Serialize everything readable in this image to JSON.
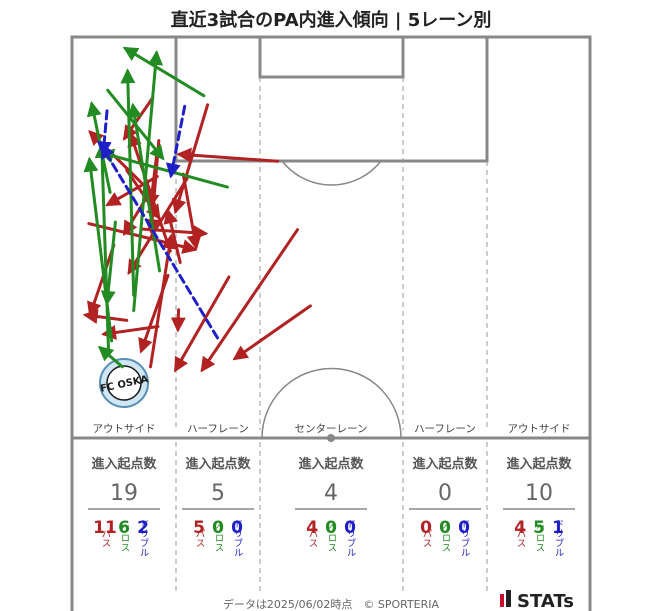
{
  "title": "直近3試合のPA内進入傾向 | 5レーン別",
  "colors": {
    "pass": "#b22222",
    "cross": "#228b22",
    "dribble": "#1f1fc8",
    "line": "#888888",
    "text": "#444444"
  },
  "logo": {
    "alt": "FC Osaka",
    "text": "FC OSKA"
  },
  "footer": {
    "note": "データは2025/06/02時点　© SPORTERIA",
    "brand": "STATs"
  },
  "chart_data": {
    "type": "arrow-map",
    "lanes": [
      {
        "name": "アウトサイド",
        "summary_label": "進入起点数",
        "count": "19",
        "pass": "11",
        "cross": "6",
        "dribble": "2"
      },
      {
        "name": "ハーフレーン",
        "summary_label": "進入起点数",
        "count": "5",
        "pass": "5",
        "cross": "0",
        "dribble": "0"
      },
      {
        "name": "センターレーン",
        "summary_label": "進入起点数",
        "count": "4",
        "pass": "4",
        "cross": "0",
        "dribble": "0"
      },
      {
        "name": "ハーフレーン",
        "summary_label": "進入起点数",
        "count": "0",
        "pass": "0",
        "cross": "0",
        "dribble": "0"
      },
      {
        "name": "アウトサイド",
        "summary_label": "進入起点数",
        "count": "10",
        "pass": "4",
        "cross": "5",
        "dribble": "1"
      }
    ],
    "stat_labels": {
      "pass": "パス",
      "cross": "クロス",
      "dribble": "ドリブル"
    },
    "arrows": [
      {
        "type": "pass",
        "from": [
          31.5,
          20.6
        ],
        "to": [
          43.7,
          13.6
        ]
      },
      {
        "type": "pass",
        "from": [
          25.3,
          29.6
        ],
        "to": [
          43.7,
          17.1
        ]
      },
      {
        "type": "pass",
        "from": [
          8.9,
          17.8
        ],
        "to": [
          22.9,
          13.6
        ]
      },
      {
        "type": "pass",
        "from": [
          18.0,
          14.6
        ],
        "to": [
          27.6,
          16.3
        ]
      },
      {
        "type": "pass",
        "from": [
          14.8,
          11.2
        ],
        "to": [
          22.2,
          10.3
        ]
      },
      {
        "type": "pass",
        "from": [
          17.5,
          7.2
        ],
        "to": [
          23.7,
          11.4
        ]
      },
      {
        "type": "pass",
        "from": [
          13.6,
          11.4
        ],
        "to": [
          25.5,
          10.4
        ]
      },
      {
        "type": "pass",
        "from": [
          27.3,
          5.5
        ],
        "to": [
          36.4,
          2.4
        ]
      },
      {
        "type": "pass",
        "from": [
          37.2,
          7.2
        ],
        "to": [
          36.5,
          1.8
        ]
      },
      {
        "type": "pass",
        "from": [
          35.3,
          31.3
        ],
        "to": [
          42.2,
          21.4
        ]
      },
      {
        "type": "pass",
        "from": [
          20.4,
          10.2
        ],
        "to": [
          25.8,
          6.9
        ]
      },
      {
        "type": "pass",
        "from": [
          25.2,
          9.1
        ],
        "to": [
          25.8,
          17.5
        ]
      },
      {
        "type": "pass",
        "from": [
          18.3,
          11.2
        ],
        "to": [
          22.0,
          4.7
        ]
      },
      {
        "type": "pass",
        "from": [
          28.1,
          12.9
        ],
        "to": [
          12.8,
          7.7
        ]
      },
      {
        "type": "pass",
        "from": [
          16.3,
          27.0
        ],
        "to": [
          15.4,
          14.1
        ]
      },
      {
        "type": "pass",
        "from": [
          18.6,
          15.1
        ],
        "to": [
          30.9,
          7.5
        ]
      },
      {
        "type": "pass",
        "from": [
          31.3,
          12.6
        ],
        "to": [
          41.2,
          9.1
        ]
      },
      {
        "type": "pass",
        "from": [
          38.0,
          11.3
        ],
        "to": [
          39.0,
          4.2
        ]
      },
      {
        "type": "pass",
        "from": [
          8.0,
          10.6
        ],
        "to": [
          13.3,
          6.9
        ]
      },
      {
        "type": "pass",
        "from": [
          29.6,
          14.2
        ],
        "to": [
          22.9,
          12.6
        ]
      },
      {
        "type": "pass",
        "from": [
          35.8,
          14.0
        ],
        "to": [
          38.4,
          13.9
        ]
      },
      {
        "type": "pass",
        "from": [
          43.3,
          10.3
        ],
        "to": [
          26.2,
          13.0
        ]
      },
      {
        "type": "pass",
        "from": [
          24.5,
          2.2
        ],
        "to": [
          27.9,
          16.1
        ]
      },
      {
        "type": "pass",
        "from": [
          21.0,
          11.0
        ],
        "to": [
          12.5,
          2.4
        ]
      },
      {
        "type": "cross",
        "from": [
          19.7,
          20.4
        ],
        "to": [
          15.2,
          3.9
        ]
      },
      {
        "type": "cross",
        "from": [
          7.7,
          17.3
        ],
        "to": [
          1.5,
          7.0
        ]
      },
      {
        "type": "cross",
        "from": [
          24.3,
          5.7
        ],
        "to": [
          34.9,
          4.6
        ]
      },
      {
        "type": "cross",
        "from": [
          20.4,
          5.0
        ],
        "to": [
          8.8,
          2.6
        ]
      },
      {
        "type": "cross",
        "from": [
          41.5,
          4.8
        ],
        "to": [
          14.3,
          3.9
        ]
      },
      {
        "type": "cross",
        "from": [
          43.3,
          6.6
        ],
        "to": [
          40.8,
          3.7
        ]
      },
      {
        "type": "cross",
        "from": [
          39.9,
          5.2
        ],
        "to": [
          16.1,
          2.3
        ]
      },
      {
        "type": "cross",
        "from": [
          30.7,
          11.5
        ],
        "to": [
          9.0,
          8.0
        ]
      },
      {
        "type": "cross",
        "from": [
          7.0,
          4.7
        ],
        "to": [
          15.9,
          11.9
        ]
      },
      {
        "type": "cross",
        "from": [
          35.9,
          8.1
        ],
        "to": [
          2.1,
          11.1
        ]
      },
      {
        "type": "cross",
        "from": [
          33.9,
          8.1
        ],
        "to": [
          4.5,
          7.3
        ]
      },
      {
        "type": "dribble",
        "from": [
          9.7,
          4.6
        ],
        "to": [
          15.3,
          4.1
        ]
      },
      {
        "type": "dribble",
        "from": [
          9.1,
          14.8
        ],
        "to": [
          18.2,
          13.0
        ]
      },
      {
        "type": "dribble",
        "from": [
          39.5,
          19.1
        ],
        "to": [
          14.3,
          3.9
        ]
      }
    ]
  }
}
